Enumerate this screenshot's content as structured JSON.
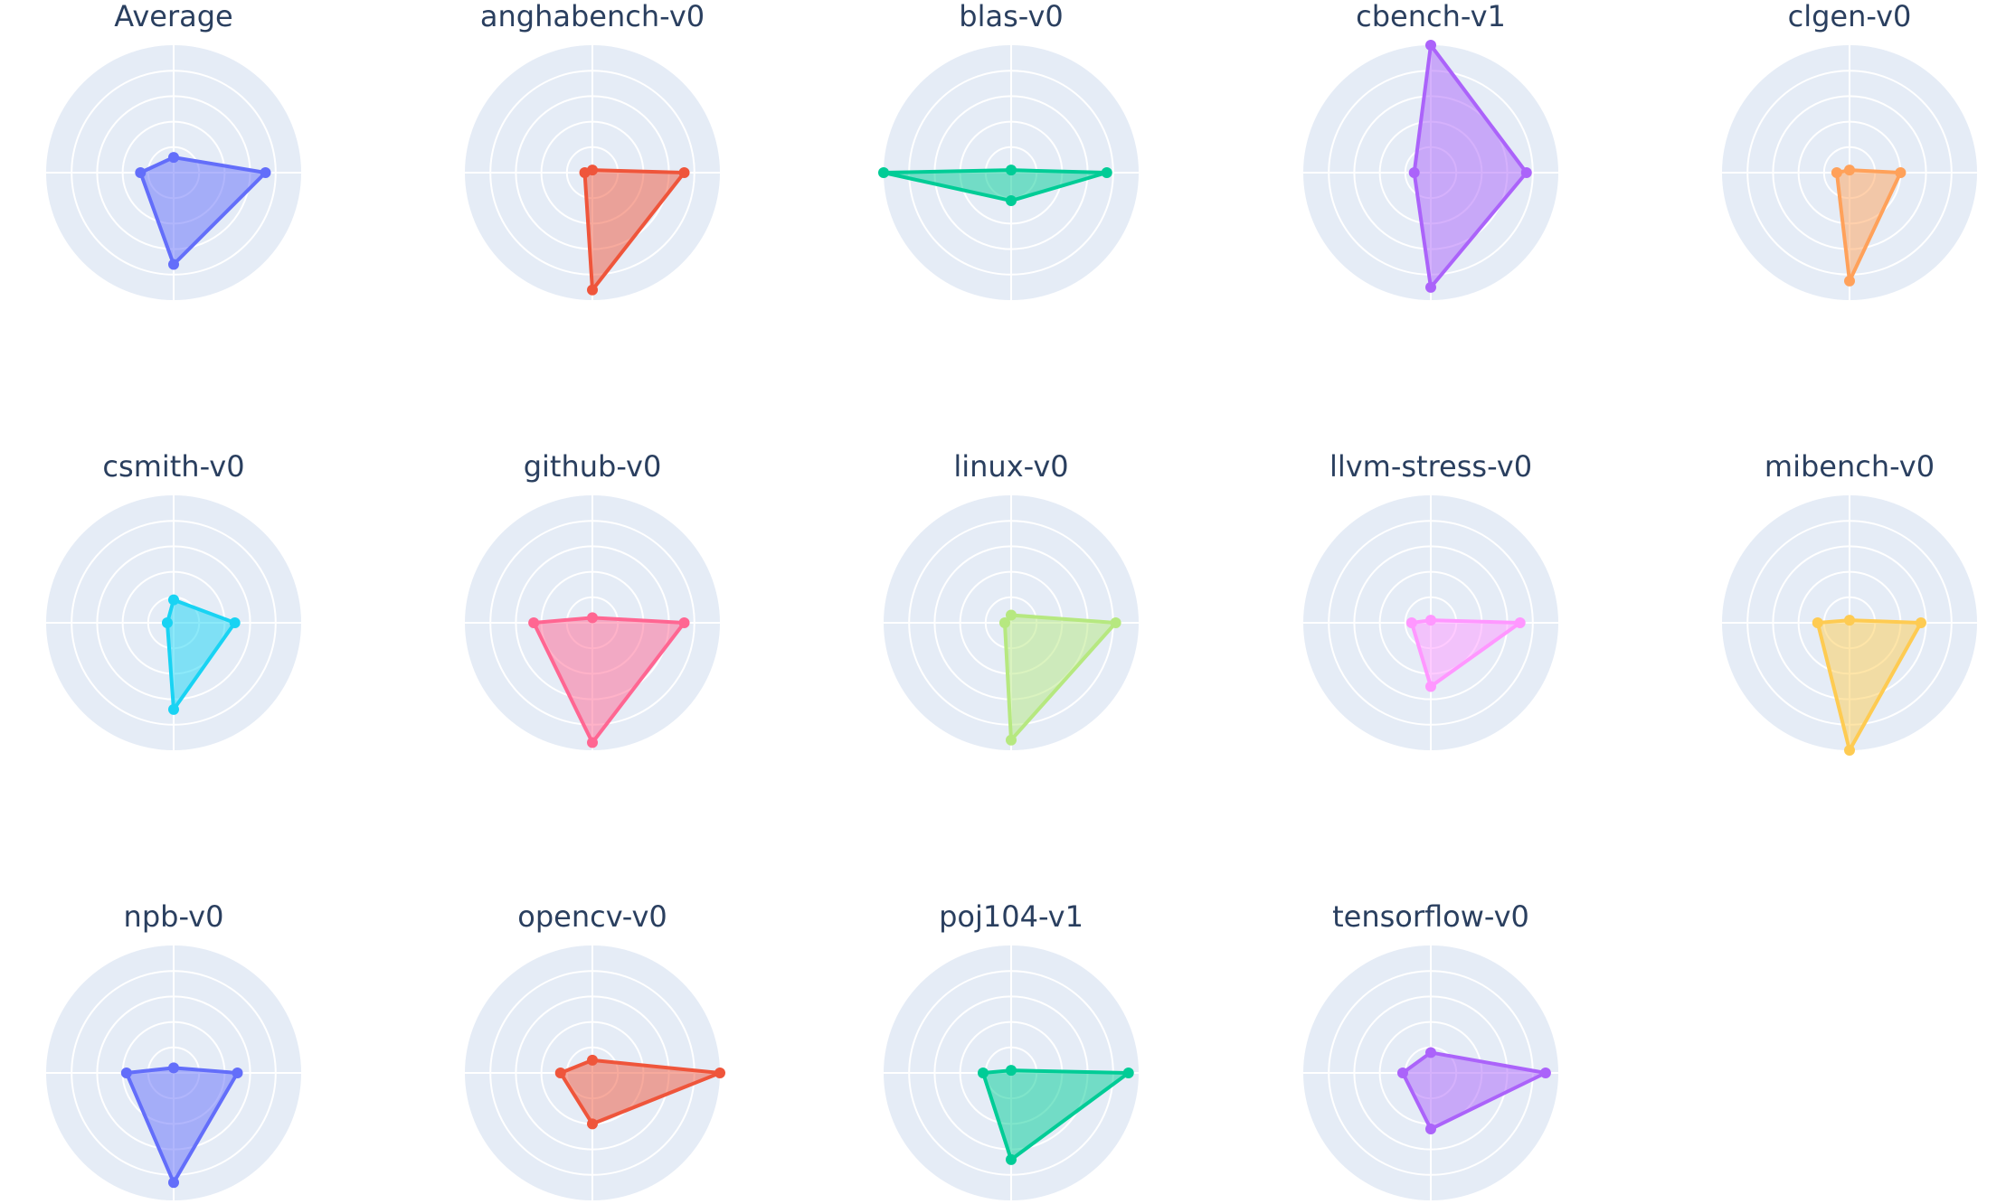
{
  "chart_data": {
    "type": "radar",
    "axes": [
      "0°",
      "90°",
      "180°",
      "270°"
    ],
    "radial_range": [
      0,
      1
    ],
    "radial_ticks": [
      0.2,
      0.4,
      0.6,
      0.8
    ],
    "grid": true,
    "colors": {
      "grid_bg": "#e5ecf6",
      "grid_line": "#ffffff",
      "title": "#2a3f5f"
    },
    "charts": [
      {
        "title": "Average",
        "color": "#636efa",
        "values": [
          0.72,
          0.12,
          0.26,
          0.72
        ]
      },
      {
        "title": "anghabench-v0",
        "color": "#ef553b",
        "values": [
          0.72,
          0.02,
          0.06,
          0.92
        ]
      },
      {
        "title": "blas-v0",
        "color": "#00cc96",
        "values": [
          0.75,
          0.02,
          1.0,
          0.22
        ]
      },
      {
        "title": "cbench-v1",
        "color": "#ab63fa",
        "values": [
          0.75,
          1.0,
          0.13,
          0.9
        ]
      },
      {
        "title": "clgen-v0",
        "color": "#ffa15a",
        "values": [
          0.4,
          0.02,
          0.1,
          0.85
        ]
      },
      {
        "title": "csmith-v0",
        "color": "#19d3f3",
        "values": [
          0.48,
          0.18,
          0.05,
          0.68
        ]
      },
      {
        "title": "github-v0",
        "color": "#ff6692",
        "values": [
          0.72,
          0.04,
          0.46,
          0.94
        ]
      },
      {
        "title": "linux-v0",
        "color": "#b6e880",
        "values": [
          0.82,
          0.06,
          0.05,
          0.92
        ]
      },
      {
        "title": "llvm-stress-v0",
        "color": "#ff97ff",
        "values": [
          0.7,
          0.02,
          0.15,
          0.5
        ]
      },
      {
        "title": "mibench-v0",
        "color": "#fecb52",
        "values": [
          0.56,
          0.02,
          0.25,
          1.0
        ]
      },
      {
        "title": "npb-v0",
        "color": "#636efa",
        "values": [
          0.5,
          0.04,
          0.37,
          0.86
        ]
      },
      {
        "title": "opencv-v0",
        "color": "#ef553b",
        "values": [
          1.0,
          0.1,
          0.25,
          0.4
        ]
      },
      {
        "title": "poj104-v1",
        "color": "#00cc96",
        "values": [
          0.92,
          0.02,
          0.22,
          0.68
        ]
      },
      {
        "title": "tensorflow-v0",
        "color": "#ab63fa",
        "values": [
          0.9,
          0.16,
          0.22,
          0.44
        ]
      }
    ]
  }
}
